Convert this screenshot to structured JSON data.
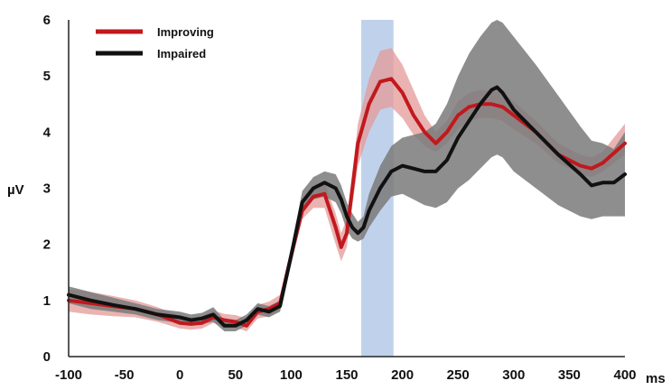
{
  "chart_data": {
    "type": "line",
    "title": "",
    "xlabel": "ms",
    "ylabel": "µV",
    "xlim": [
      -100,
      400
    ],
    "ylim": [
      0,
      6
    ],
    "x_ticks": [
      -100,
      -50,
      0,
      50,
      100,
      150,
      200,
      250,
      300,
      350,
      400
    ],
    "y_ticks": [
      0,
      1,
      2,
      3,
      4,
      5,
      6
    ],
    "grid": false,
    "legend_position": "top-left",
    "highlight_band": {
      "x_start": 163,
      "x_end": 192,
      "color": "#b9cde9"
    },
    "series": [
      {
        "name": "Improving",
        "color": "#c0191e",
        "band_color": "#e39a98",
        "x": [
          -100,
          -80,
          -60,
          -40,
          -20,
          0,
          10,
          20,
          30,
          40,
          50,
          60,
          70,
          80,
          90,
          100,
          110,
          120,
          130,
          140,
          145,
          150,
          155,
          160,
          170,
          180,
          190,
          200,
          210,
          220,
          230,
          240,
          250,
          260,
          270,
          280,
          290,
          300,
          320,
          340,
          360,
          370,
          380,
          400
        ],
        "y": [
          1.0,
          0.95,
          0.9,
          0.85,
          0.75,
          0.6,
          0.58,
          0.6,
          0.7,
          0.65,
          0.62,
          0.55,
          0.8,
          0.85,
          0.95,
          1.8,
          2.6,
          2.85,
          2.9,
          2.3,
          1.95,
          2.2,
          3.0,
          3.8,
          4.5,
          4.9,
          4.95,
          4.7,
          4.3,
          4.0,
          3.8,
          4.0,
          4.3,
          4.45,
          4.5,
          4.5,
          4.45,
          4.3,
          4.0,
          3.6,
          3.4,
          3.35,
          3.45,
          3.8
        ],
        "lower": [
          0.8,
          0.75,
          0.72,
          0.7,
          0.62,
          0.5,
          0.48,
          0.5,
          0.6,
          0.55,
          0.52,
          0.45,
          0.68,
          0.72,
          0.82,
          1.65,
          2.45,
          2.65,
          2.65,
          2.0,
          1.7,
          1.95,
          2.7,
          3.4,
          4.0,
          4.4,
          4.45,
          4.25,
          3.95,
          3.75,
          3.65,
          3.8,
          4.05,
          4.2,
          4.25,
          4.25,
          4.2,
          4.05,
          3.8,
          3.45,
          3.25,
          3.2,
          3.3,
          3.6
        ],
        "upper": [
          1.2,
          1.15,
          1.08,
          1.0,
          0.88,
          0.72,
          0.7,
          0.72,
          0.82,
          0.76,
          0.74,
          0.68,
          0.92,
          0.98,
          1.1,
          1.95,
          2.75,
          3.0,
          3.1,
          2.55,
          2.2,
          2.45,
          3.3,
          4.15,
          4.95,
          5.45,
          5.5,
          5.2,
          4.75,
          4.3,
          4.0,
          4.2,
          4.55,
          4.7,
          4.75,
          4.75,
          4.7,
          4.55,
          4.2,
          3.8,
          3.6,
          3.55,
          3.65,
          4.15
        ]
      },
      {
        "name": "Impaired",
        "color": "#111111",
        "band_color": "#7a7a7a",
        "x": [
          -100,
          -80,
          -60,
          -40,
          -20,
          0,
          10,
          20,
          30,
          40,
          50,
          60,
          70,
          80,
          90,
          100,
          110,
          120,
          130,
          140,
          145,
          150,
          155,
          160,
          165,
          170,
          180,
          190,
          200,
          210,
          220,
          230,
          240,
          250,
          260,
          270,
          280,
          285,
          290,
          300,
          320,
          340,
          360,
          370,
          380,
          390,
          400
        ],
        "y": [
          1.1,
          1.0,
          0.92,
          0.85,
          0.75,
          0.7,
          0.65,
          0.68,
          0.75,
          0.55,
          0.55,
          0.65,
          0.85,
          0.8,
          0.9,
          1.8,
          2.75,
          3.0,
          3.1,
          3.0,
          2.8,
          2.5,
          2.3,
          2.2,
          2.3,
          2.6,
          3.0,
          3.3,
          3.4,
          3.35,
          3.3,
          3.3,
          3.5,
          3.9,
          4.2,
          4.5,
          4.75,
          4.8,
          4.7,
          4.4,
          4.0,
          3.6,
          3.25,
          3.05,
          3.1,
          3.1,
          3.25
        ],
        "lower": [
          0.95,
          0.85,
          0.8,
          0.75,
          0.65,
          0.6,
          0.55,
          0.58,
          0.62,
          0.45,
          0.45,
          0.55,
          0.75,
          0.7,
          0.8,
          1.65,
          2.55,
          2.8,
          2.85,
          2.75,
          2.55,
          2.25,
          2.1,
          2.05,
          2.1,
          2.3,
          2.6,
          2.85,
          2.9,
          2.8,
          2.7,
          2.65,
          2.75,
          3.0,
          3.15,
          3.35,
          3.55,
          3.6,
          3.55,
          3.3,
          3.0,
          2.7,
          2.5,
          2.45,
          2.5,
          2.5,
          2.5
        ],
        "upper": [
          1.25,
          1.15,
          1.05,
          0.95,
          0.85,
          0.8,
          0.75,
          0.78,
          0.88,
          0.65,
          0.65,
          0.75,
          0.95,
          0.9,
          1.0,
          1.95,
          2.95,
          3.2,
          3.3,
          3.25,
          3.05,
          2.75,
          2.55,
          2.4,
          2.5,
          2.9,
          3.4,
          3.75,
          3.9,
          3.95,
          4.0,
          4.15,
          4.5,
          5.0,
          5.4,
          5.7,
          5.95,
          6.0,
          5.95,
          5.7,
          5.2,
          4.65,
          4.1,
          3.85,
          3.8,
          3.7,
          4.0
        ]
      }
    ]
  }
}
